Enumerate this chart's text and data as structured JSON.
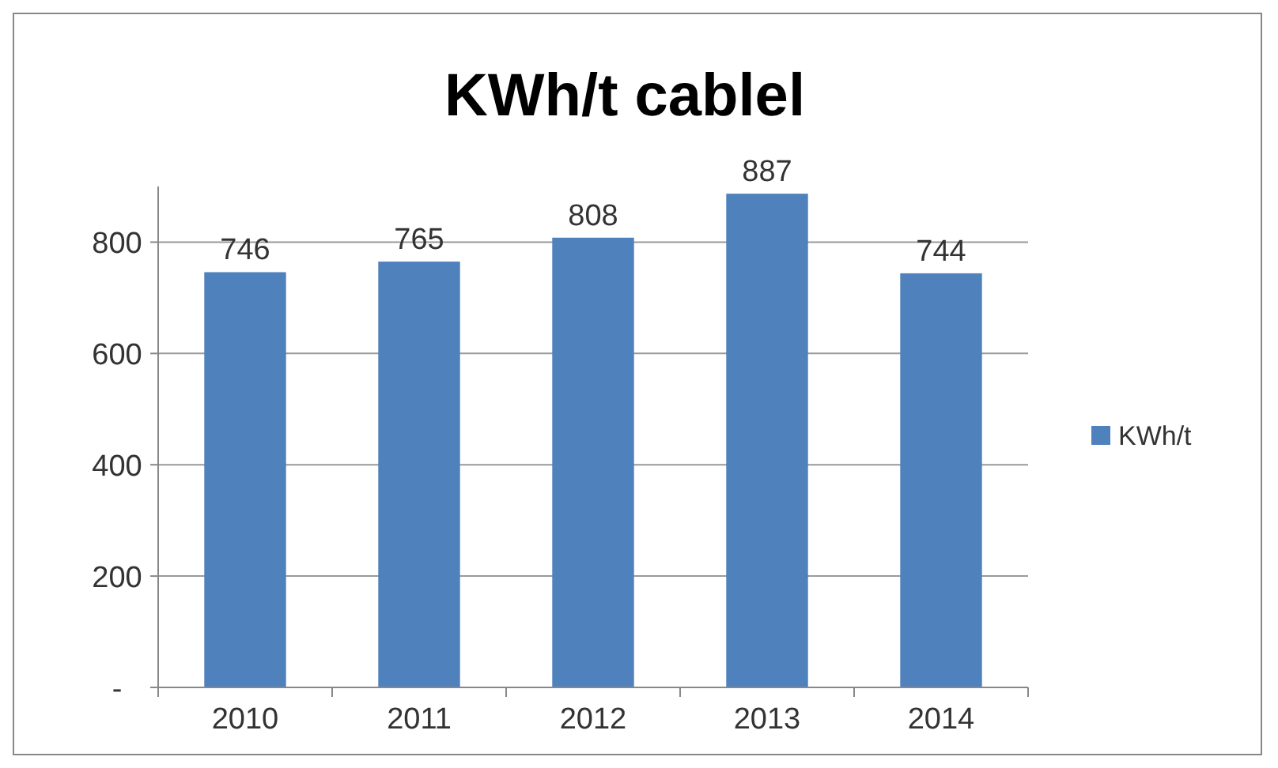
{
  "chart_data": {
    "type": "bar",
    "title": "KWh/t cablel",
    "categories": [
      "2010",
      "2011",
      "2012",
      "2013",
      "2014"
    ],
    "series": [
      {
        "name": "KWh/t",
        "color": "#4f81bd",
        "values": [
          746,
          765,
          808,
          887,
          744
        ]
      }
    ],
    "ylim": [
      0,
      900
    ],
    "yticks": [
      {
        "value": 0,
        "label": "-"
      },
      200,
      400,
      600,
      800
    ],
    "grid": "y",
    "legend": "right",
    "data_labels": true
  }
}
